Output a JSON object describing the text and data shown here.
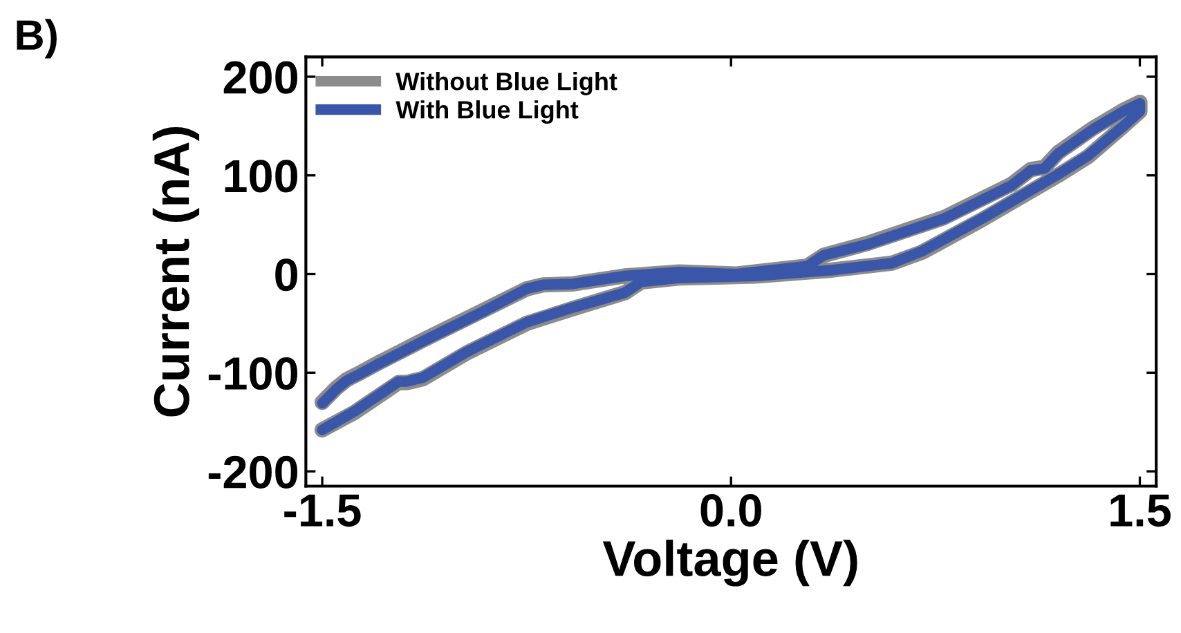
{
  "chart_data": {
    "type": "line",
    "title": "B)",
    "xlabel": "Voltage (V)",
    "ylabel": "Current (nA)",
    "xlim": [
      -1.56,
      1.56
    ],
    "ylim": [
      -215,
      220
    ],
    "xticks": [
      {
        "value": -1.5,
        "label": "-1.5"
      },
      {
        "value": 0,
        "label": "0.0"
      },
      {
        "value": 1.5,
        "label": "1.5"
      }
    ],
    "yticks": [
      {
        "value": -200,
        "label": "-200"
      },
      {
        "value": -100,
        "label": "-100"
      },
      0,
      100,
      200
    ],
    "grid": false,
    "legend": "top left",
    "marker": "none",
    "line_style": "solid",
    "series": [
      {
        "name": "Without Blue Light",
        "color": "#8c8c8c",
        "x": [
          -1.5,
          -1.45,
          -1.41,
          -1.36,
          -1.3,
          -1.13,
          -0.91,
          -0.75,
          -0.69,
          -0.58,
          -0.39,
          -0.19,
          0.02,
          0.28,
          0.34,
          0.5,
          0.78,
          1.03,
          1.1,
          1.15,
          1.2,
          1.33,
          1.44,
          1.5,
          1.5,
          1.44,
          1.31,
          1.2,
          0.92,
          0.7,
          0.59,
          0.37,
          0.09,
          -0.19,
          -0.33,
          -0.39,
          -0.58,
          -0.75,
          -0.97,
          -1.13,
          -1.19,
          -1.22,
          -1.3,
          -1.38,
          -1.5
        ],
        "values": [
          -130,
          -116,
          -107,
          -100,
          -91,
          -67,
          -37,
          -15,
          -11,
          -10,
          -2,
          2,
          0,
          8,
          19,
          31,
          57,
          91,
          106,
          108,
          123,
          148,
          166,
          174,
          165,
          150,
          119,
          100,
          55,
          22,
          11,
          4,
          -2,
          -4,
          -8,
          -19,
          -35,
          -50,
          -80,
          -106,
          -110,
          -110,
          -125,
          -140,
          -158
        ]
      },
      {
        "name": "With Blue Light",
        "color": "#3a56a8",
        "x": [
          -1.5,
          -1.45,
          -1.41,
          -1.36,
          -1.3,
          -1.13,
          -0.91,
          -0.75,
          -0.69,
          -0.58,
          -0.39,
          -0.19,
          0.02,
          0.28,
          0.34,
          0.5,
          0.78,
          1.03,
          1.1,
          1.15,
          1.2,
          1.33,
          1.44,
          1.5,
          1.5,
          1.44,
          1.31,
          1.2,
          0.92,
          0.7,
          0.59,
          0.37,
          0.09,
          -0.19,
          -0.33,
          -0.39,
          -0.58,
          -0.75,
          -0.97,
          -1.13,
          -1.19,
          -1.22,
          -1.3,
          -1.38,
          -1.5
        ],
        "values": [
          -131,
          -117,
          -108,
          -101,
          -92,
          -68,
          -38,
          -15,
          -11,
          -10,
          -2,
          2,
          0,
          8,
          19,
          30,
          56,
          90,
          105,
          107,
          122,
          147,
          165,
          173,
          165,
          150,
          120,
          101,
          56,
          23,
          11,
          4,
          -2,
          -4,
          -8,
          -19,
          -34,
          -49,
          -79,
          -105,
          -109,
          -109,
          -124,
          -139,
          -158
        ]
      }
    ]
  }
}
